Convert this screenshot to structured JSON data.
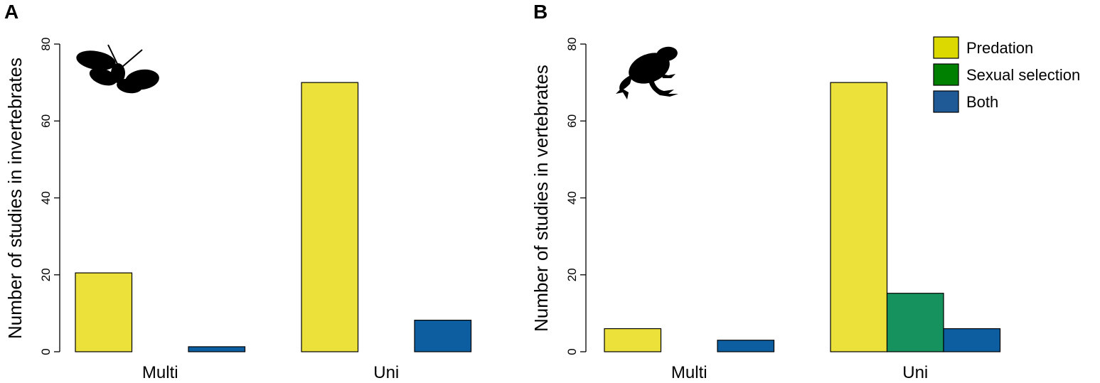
{
  "chart_data": [
    {
      "type": "bar",
      "panel": "A",
      "ylabel": "Number of studies in invertebrates",
      "categories": [
        "Multi",
        "Uni"
      ],
      "ylim": [
        0,
        80
      ],
      "yticks": [
        0,
        20,
        40,
        60,
        80
      ],
      "grid": false,
      "icon": "butterfly-silhouette-icon",
      "series": [
        {
          "values": [
            20.5,
            70
          ],
          "color": "#ECE03A"
        },
        {
          "values": [
            0,
            0
          ],
          "color": "#16925F"
        },
        {
          "values": [
            1.3,
            8.2
          ],
          "color": "#0D5EA0"
        }
      ]
    },
    {
      "type": "bar",
      "panel": "B",
      "ylabel": "Number of studies in vertebrates",
      "categories": [
        "Multi",
        "Uni"
      ],
      "ylim": [
        0,
        80
      ],
      "yticks": [
        0,
        20,
        40,
        60,
        80
      ],
      "grid": false,
      "icon": "frog-silhouette-icon",
      "series": [
        {
          "values": [
            6,
            70
          ],
          "color": "#ECE03A"
        },
        {
          "values": [
            0,
            15.2
          ],
          "color": "#16925F"
        },
        {
          "values": [
            3,
            6
          ],
          "color": "#0D5EA0"
        }
      ]
    }
  ],
  "legend": {
    "placement": "top-right",
    "items": [
      {
        "label": "Predation",
        "color": "#DCD900"
      },
      {
        "label": "Sexual selection",
        "color": "#008000"
      },
      {
        "label": "Both",
        "color": "#1F5A96"
      }
    ]
  }
}
